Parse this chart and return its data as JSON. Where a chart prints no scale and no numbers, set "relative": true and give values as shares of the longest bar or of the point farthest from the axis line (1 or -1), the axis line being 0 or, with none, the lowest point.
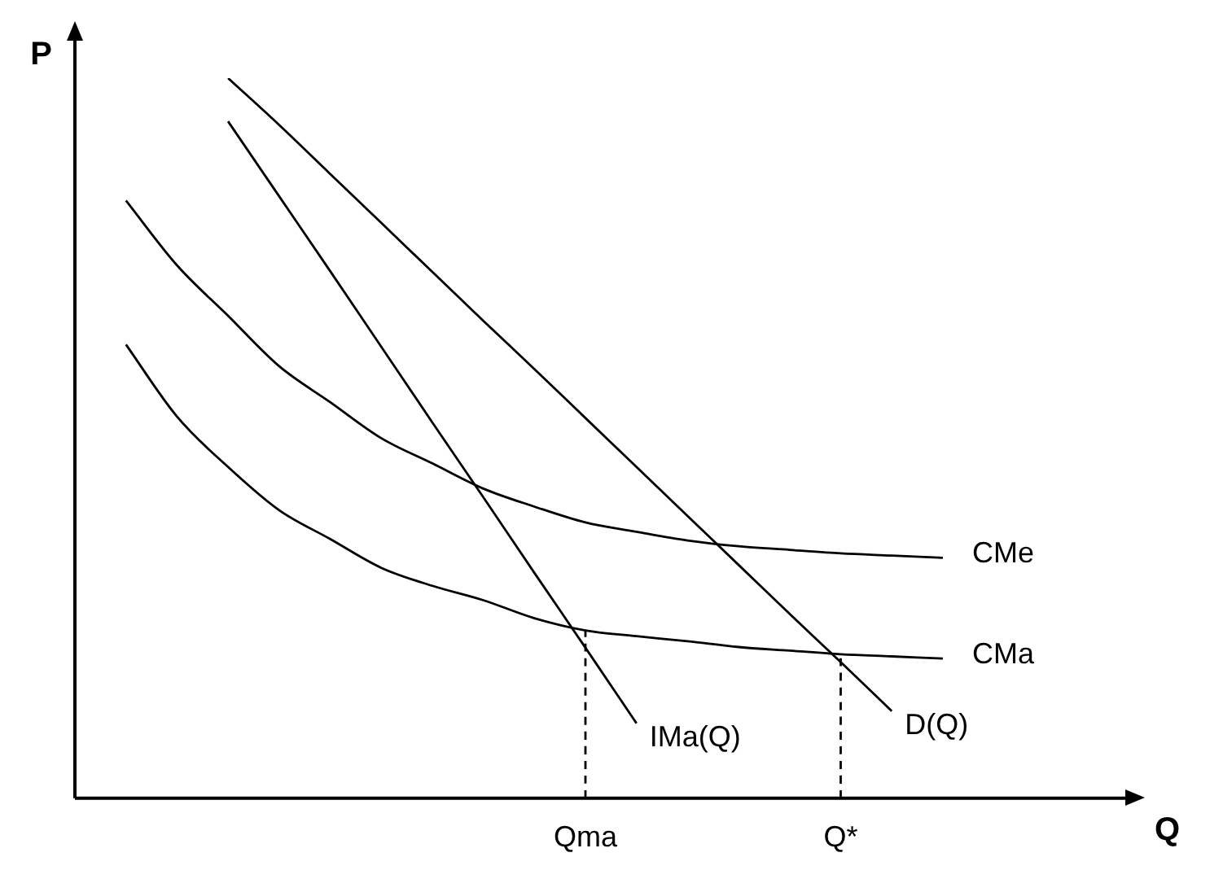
{
  "chart_data": {
    "type": "line",
    "relative": true,
    "xlabel": "Q",
    "ylabel": "P",
    "categories": [
      null,
      null,
      null,
      null,
      null,
      null,
      null,
      null,
      null,
      null,
      "Qma",
      null,
      null,
      null,
      null,
      "Q*",
      null,
      null,
      null,
      null,
      null
    ],
    "grid": false,
    "legend": false,
    "marker": "none",
    "series": [
      {
        "name": "D(Q)",
        "color": "#000000",
        "values": [
          null,
          null,
          null,
          1,
          0.935,
          0.867,
          0.799,
          0.731,
          0.663,
          0.596,
          0.528,
          0.46,
          0.392,
          0.324,
          0.256,
          0.189,
          0.121,
          null,
          null,
          null,
          null
        ]
      },
      {
        "name": "IMa(Q)",
        "color": "#000000",
        "values": [
          null,
          null,
          null,
          0.94,
          0.836,
          0.732,
          0.627,
          0.522,
          0.418,
          0.313,
          0.209,
          0.104,
          null,
          null,
          null,
          null,
          null,
          null,
          null,
          null,
          null
        ]
      },
      {
        "name": "CMe",
        "color": "#000000",
        "values": [
          null,
          0.83,
          0.74,
          0.67,
          0.6,
          0.55,
          0.5,
          0.465,
          0.43,
          0.405,
          0.383,
          0.37,
          0.358,
          0.35,
          0.345,
          0.34,
          0.337,
          0.334,
          null,
          null,
          null
        ]
      },
      {
        "name": "CMa",
        "color": "#000000",
        "values": [
          null,
          0.63,
          0.53,
          0.46,
          0.4,
          0.36,
          0.32,
          0.295,
          0.275,
          0.25,
          0.233,
          0.225,
          0.218,
          0.21,
          0.205,
          0.2,
          0.197,
          0.194,
          null,
          null,
          null
        ]
      },
      {
        "color": "#000000",
        "line_style": "dashed",
        "x": [
          "Qma",
          "Qma"
        ],
        "values": [
          0,
          0.233
        ]
      },
      {
        "color": "#000000",
        "line_style": "dashed",
        "x": [
          "Q*",
          "Q*"
        ],
        "values": [
          0,
          0.2
        ]
      }
    ]
  }
}
